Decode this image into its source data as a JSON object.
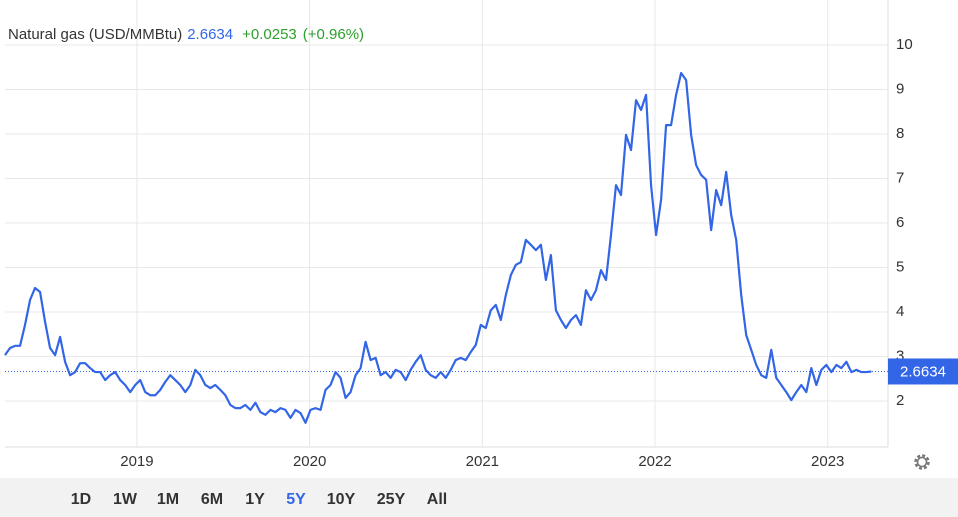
{
  "chart_data": {
    "type": "line",
    "change": "+0.0253",
    "change_percent": "(+0.96%)",
    "range_buttons": [
      "1D",
      "1W",
      "1M",
      "6M",
      "1Y",
      "5Y",
      "10Y",
      "25Y",
      "All"
    ],
    "selected_range": "5Y",
    "x": [
      2018.236,
      2018.265,
      2018.294,
      2018.323,
      2018.352,
      2018.381,
      2018.41,
      2018.439,
      2018.468,
      2018.497,
      2018.526,
      2018.555,
      2018.584,
      2018.613,
      2018.642,
      2018.671,
      2018.7,
      2018.729,
      2018.758,
      2018.787,
      2018.816,
      2018.845,
      2018.874,
      2018.903,
      2018.932,
      2018.961,
      2018.99,
      2019.019,
      2019.048,
      2019.077,
      2019.106,
      2019.135,
      2019.164,
      2019.193,
      2019.222,
      2019.251,
      2019.28,
      2019.309,
      2019.338,
      2019.367,
      2019.396,
      2019.425,
      2019.454,
      2019.483,
      2019.512,
      2019.541,
      2019.57,
      2019.599,
      2019.628,
      2019.657,
      2019.686,
      2019.715,
      2019.744,
      2019.773,
      2019.802,
      2019.831,
      2019.86,
      2019.889,
      2019.918,
      2019.947,
      2019.976,
      2020.005,
      2020.034,
      2020.063,
      2020.092,
      2020.121,
      2020.15,
      2020.179,
      2020.208,
      2020.237,
      2020.266,
      2020.295,
      2020.324,
      2020.353,
      2020.382,
      2020.411,
      2020.44,
      2020.469,
      2020.498,
      2020.527,
      2020.556,
      2020.585,
      2020.614,
      2020.643,
      2020.672,
      2020.701,
      2020.73,
      2020.759,
      2020.788,
      2020.817,
      2020.846,
      2020.875,
      2020.904,
      2020.933,
      2020.962,
      2020.991,
      2021.02,
      2021.049,
      2021.078,
      2021.107,
      2021.136,
      2021.165,
      2021.194,
      2021.223,
      2021.252,
      2021.281,
      2021.31,
      2021.339,
      2021.368,
      2021.397,
      2021.426,
      2021.455,
      2021.484,
      2021.513,
      2021.542,
      2021.571,
      2021.6,
      2021.629,
      2021.658,
      2021.687,
      2021.716,
      2021.745,
      2021.774,
      2021.803,
      2021.832,
      2021.861,
      2021.89,
      2021.919,
      2021.948,
      2021.977,
      2022.006,
      2022.035,
      2022.064,
      2022.093,
      2022.122,
      2022.151,
      2022.18,
      2022.209,
      2022.238,
      2022.267,
      2022.296,
      2022.325,
      2022.354,
      2022.383,
      2022.412,
      2022.441,
      2022.47,
      2022.499,
      2022.528,
      2022.557,
      2022.586,
      2022.615,
      2022.644,
      2022.673,
      2022.702,
      2022.731,
      2022.76,
      2022.789,
      2022.818,
      2022.847,
      2022.876,
      2022.905,
      2022.934,
      2022.963,
      2022.992,
      2023.021,
      2023.05,
      2023.079,
      2023.108,
      2023.137,
      2023.166,
      2023.195,
      2023.224,
      2023.253
    ],
    "series": [
      {
        "name": "Natural gas (USD/MMBtu)",
        "color": "#3366e6",
        "values": [
          3.03,
          3.19,
          3.24,
          3.24,
          3.71,
          4.27,
          4.54,
          4.45,
          3.78,
          3.19,
          3.03,
          3.44,
          2.88,
          2.58,
          2.65,
          2.85,
          2.85,
          2.74,
          2.65,
          2.65,
          2.47,
          2.58,
          2.65,
          2.47,
          2.36,
          2.2,
          2.36,
          2.47,
          2.2,
          2.13,
          2.13,
          2.25,
          2.43,
          2.58,
          2.47,
          2.36,
          2.2,
          2.36,
          2.7,
          2.58,
          2.36,
          2.29,
          2.36,
          2.25,
          2.13,
          1.91,
          1.84,
          1.84,
          1.91,
          1.8,
          1.96,
          1.75,
          1.69,
          1.8,
          1.75,
          1.84,
          1.8,
          1.62,
          1.8,
          1.73,
          1.51,
          1.8,
          1.84,
          1.8,
          2.25,
          2.36,
          2.65,
          2.52,
          2.07,
          2.2,
          2.58,
          2.74,
          3.33,
          2.92,
          2.97,
          2.58,
          2.65,
          2.52,
          2.7,
          2.65,
          2.47,
          2.7,
          2.88,
          3.03,
          2.7,
          2.58,
          2.52,
          2.65,
          2.52,
          2.7,
          2.92,
          2.97,
          2.92,
          3.1,
          3.26,
          3.71,
          3.64,
          4.04,
          4.16,
          3.82,
          4.38,
          4.83,
          5.06,
          5.12,
          5.62,
          5.51,
          5.39,
          5.51,
          4.72,
          5.28,
          4.04,
          3.82,
          3.64,
          3.82,
          3.93,
          3.71,
          4.49,
          4.27,
          4.49,
          4.94,
          4.72,
          5.73,
          6.85,
          6.63,
          7.98,
          7.64,
          8.76,
          8.54,
          8.88,
          6.85,
          5.73,
          6.52,
          8.2,
          8.2,
          8.88,
          9.37,
          9.21,
          7.98,
          7.3,
          7.08,
          6.97,
          5.84,
          6.74,
          6.4,
          7.15,
          6.18,
          5.62,
          4.38,
          3.48,
          3.15,
          2.81,
          2.58,
          2.52,
          3.15,
          2.52,
          2.36,
          2.2,
          2.02,
          2.2,
          2.36,
          2.2,
          2.74,
          2.36,
          2.7,
          2.81,
          2.65,
          2.81,
          2.74,
          2.88,
          2.65,
          2.7,
          2.65,
          2.65,
          2.6634
        ]
      }
    ],
    "xlim": [
      2018.236,
      2023.349
    ],
    "xticks": [
      2019,
      2020,
      2021,
      2022,
      2023
    ],
    "ylim": [
      1,
      11
    ],
    "yticks": [
      2,
      3,
      4,
      5,
      6,
      7,
      8,
      9,
      10
    ],
    "grid": true
  }
}
